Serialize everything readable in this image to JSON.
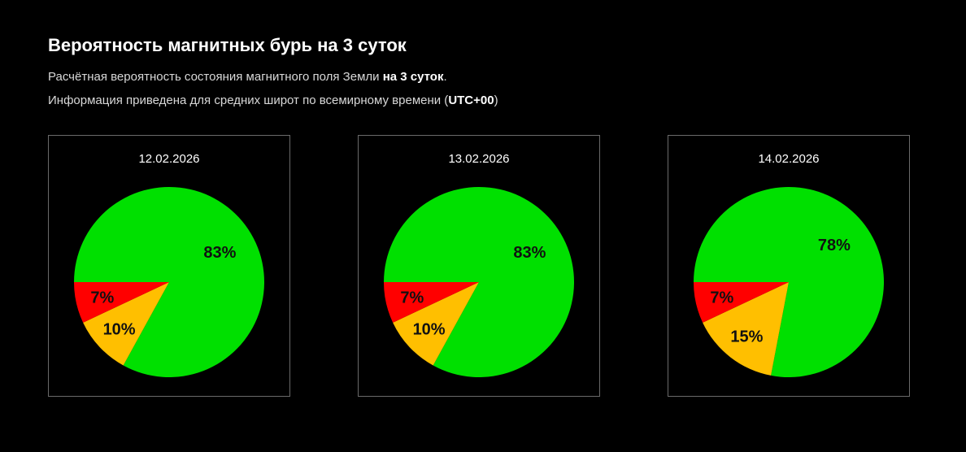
{
  "header": {
    "title": "Вероятность магнитных бурь на 3 суток",
    "line1_prefix": "Расчётная вероятность состояния магнитного поля Земли ",
    "line1_bold": "на 3 суток",
    "line1_suffix": ".",
    "line2_prefix": "Информация приведена для средних широт по всемирному времени (",
    "line2_bold": "UTC+00",
    "line2_suffix": ")"
  },
  "colors": {
    "calm": "#00e000",
    "unstable": "#ffbf00",
    "storm": "#ff0000",
    "background": "#000000",
    "border": "#6a6a6a"
  },
  "cards": [
    {
      "date": "12.02.2026",
      "labels": {
        "green": "83%",
        "orange": "10%",
        "red": "7%"
      }
    },
    {
      "date": "13.02.2026",
      "labels": {
        "green": "83%",
        "orange": "10%",
        "red": "7%"
      }
    },
    {
      "date": "14.02.2026",
      "labels": {
        "green": "78%",
        "orange": "15%",
        "red": "7%"
      }
    }
  ],
  "chart_data": [
    {
      "type": "pie",
      "title": "12.02.2026",
      "categories": [
        "green",
        "orange",
        "red"
      ],
      "values": [
        83,
        10,
        7
      ],
      "colors": [
        "#00e000",
        "#ffbf00",
        "#ff0000"
      ],
      "start_angle": "9 o'clock, clockwise"
    },
    {
      "type": "pie",
      "title": "13.02.2026",
      "categories": [
        "green",
        "orange",
        "red"
      ],
      "values": [
        83,
        10,
        7
      ],
      "colors": [
        "#00e000",
        "#ffbf00",
        "#ff0000"
      ],
      "start_angle": "9 o'clock, clockwise"
    },
    {
      "type": "pie",
      "title": "14.02.2026",
      "categories": [
        "green",
        "orange",
        "red"
      ],
      "values": [
        78,
        15,
        7
      ],
      "colors": [
        "#00e000",
        "#ffbf00",
        "#ff0000"
      ],
      "start_angle": "9 o'clock, clockwise"
    }
  ]
}
